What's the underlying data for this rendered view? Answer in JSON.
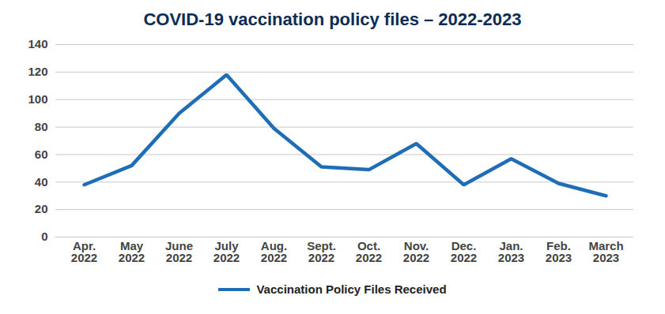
{
  "chart_data": {
    "type": "line",
    "title": "COVID-19 vaccination policy files – 2022-2023",
    "categories": [
      "Apr. 2022",
      "May 2022",
      "June 2022",
      "July 2022",
      "Aug. 2022",
      "Sept. 2022",
      "Oct. 2022",
      "Nov. 2022",
      "Dec. 2022",
      "Jan. 2023",
      "Feb. 2023",
      "March 2023"
    ],
    "series": [
      {
        "name": "Vaccination Policy Files Received",
        "color": "#1f6db5",
        "values": [
          38,
          52,
          90,
          118,
          79,
          51,
          49,
          68,
          38,
          57,
          39,
          30
        ]
      }
    ],
    "ylim": [
      0,
      140
    ],
    "yticks": [
      0,
      20,
      40,
      60,
      80,
      100,
      120,
      140
    ],
    "grid": true,
    "legend": "bottom"
  }
}
